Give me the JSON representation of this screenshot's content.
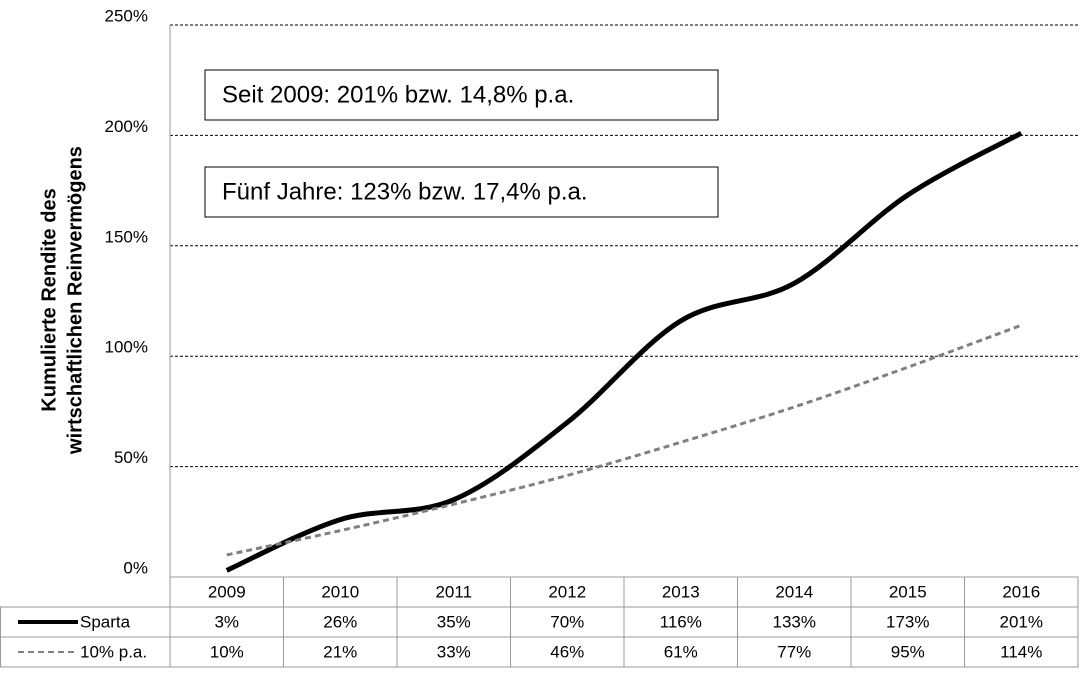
{
  "chart_data": {
    "type": "line",
    "ylabel": [
      "Kumulierte Rendite des",
      "wirtschaftlichen Reinvermögens"
    ],
    "annotations": [
      "Seit 2009: 201% bzw. 14,8% p.a.",
      "Fünf Jahre: 123% bzw. 17,4% p.a."
    ],
    "categories": [
      "2009",
      "2010",
      "2011",
      "2012",
      "2013",
      "2014",
      "2015",
      "2016"
    ],
    "series": [
      {
        "name": "Sparta",
        "color": "#000000",
        "style": "solid",
        "values": [
          3,
          26,
          35,
          70,
          116,
          133,
          173,
          201
        ],
        "value_labels": [
          "3%",
          "26%",
          "35%",
          "70%",
          "116%",
          "133%",
          "173%",
          "201%"
        ]
      },
      {
        "name": "10% p.a.",
        "color": "#808080",
        "style": "dashed",
        "values": [
          10,
          21,
          33,
          46,
          61,
          77,
          95,
          114
        ],
        "value_labels": [
          "10%",
          "21%",
          "33%",
          "46%",
          "61%",
          "77%",
          "95%",
          "114%"
        ]
      }
    ],
    "ylim": [
      0,
      250
    ],
    "yticks": [
      {
        "value": 0,
        "label": "0%"
      },
      {
        "value": 50,
        "label": "50%"
      },
      {
        "value": 100,
        "label": "100%"
      },
      {
        "value": 150,
        "label": "150%"
      },
      {
        "value": 200,
        "label": "200%"
      },
      {
        "value": 250,
        "label": "250%"
      }
    ],
    "grid": true
  }
}
